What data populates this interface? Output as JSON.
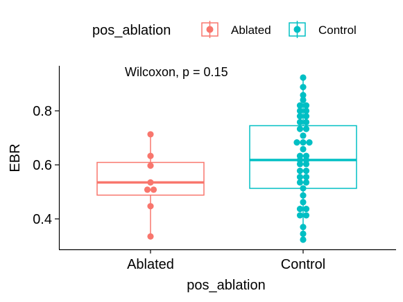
{
  "chart_data": {
    "type": "boxplot",
    "title": "",
    "xlabel": "pos_ablation",
    "ylabel": "EBR",
    "yticks": [
      "0.4",
      "0.6",
      "0.8"
    ],
    "ylim": [
      0.29,
      0.95
    ],
    "categories": [
      "Ablated",
      "Control"
    ],
    "legend": {
      "title": "pos_ablation",
      "position": "top",
      "entries": [
        "Ablated",
        "Control"
      ]
    },
    "annotation": "Wilcoxon, p = 0.15",
    "colors": {
      "Ablated": "#F8766D",
      "Control": "#00BFC4"
    },
    "series": [
      {
        "name": "Ablated",
        "box": {
          "min": 0.335,
          "q1": 0.488,
          "median": 0.535,
          "q3": 0.609,
          "max": 0.713
        },
        "points": [
          0.713,
          0.633,
          0.597,
          0.535,
          0.508,
          0.508,
          0.447,
          0.335
        ]
      },
      {
        "name": "Control",
        "box": {
          "min": 0.323,
          "q1": 0.513,
          "median": 0.618,
          "q3": 0.745,
          "max": 0.923
        },
        "points": [
          0.923,
          0.888,
          0.858,
          0.84,
          0.82,
          0.82,
          0.8,
          0.8,
          0.78,
          0.78,
          0.758,
          0.758,
          0.733,
          0.733,
          0.708,
          0.683,
          0.683,
          0.683,
          0.658,
          0.633,
          0.633,
          0.618,
          0.618,
          0.603,
          0.603,
          0.578,
          0.578,
          0.555,
          0.555,
          0.535,
          0.535,
          0.513,
          0.487,
          0.462,
          0.437,
          0.437,
          0.413,
          0.413,
          0.37,
          0.345,
          0.323
        ]
      }
    ]
  }
}
